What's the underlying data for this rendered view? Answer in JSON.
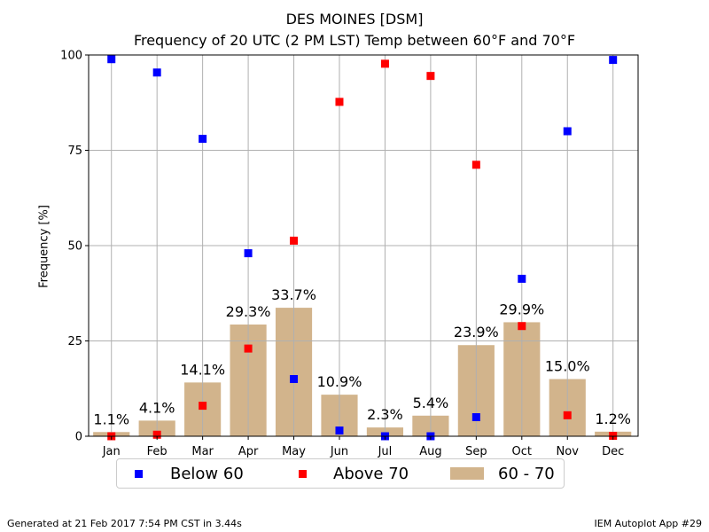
{
  "title": "DES MOINES [DSM]",
  "subtitle": "Frequency of 20 UTC (2 PM LST) Temp between 60°F and 70°F",
  "footer_left": "Generated at 21 Feb 2017 7:54 PM CST in 3.44s",
  "footer_right": "IEM Autoplot App #29",
  "colors": {
    "bar": "#d2b48c",
    "below": "#0000ff",
    "above": "#ff0000",
    "grid": "#b0b0b0"
  },
  "chart_data": {
    "type": "bar",
    "title": "DES MOINES [DSM]",
    "subtitle": "Frequency of 20 UTC (2 PM LST) Temp between 60°F and 70°F",
    "xlabel": "",
    "ylabel": "Frequency [%]",
    "ylim": [
      0,
      100
    ],
    "yticks": [
      0,
      25,
      50,
      75,
      100
    ],
    "grid": true,
    "legend_position": "bottom",
    "categories": [
      "Jan",
      "Feb",
      "Mar",
      "Apr",
      "May",
      "Jun",
      "Jul",
      "Aug",
      "Sep",
      "Oct",
      "Nov",
      "Dec"
    ],
    "series": [
      {
        "name": "60 - 70",
        "kind": "bar",
        "values": [
          1.1,
          4.1,
          14.1,
          29.3,
          33.7,
          10.9,
          2.3,
          5.4,
          23.9,
          29.9,
          15.0,
          1.2
        ],
        "labels": [
          "1.1%",
          "4.1%",
          "14.1%",
          "29.3%",
          "33.7%",
          "10.9%",
          "2.3%",
          "5.4%",
          "23.9%",
          "29.9%",
          "15.0%",
          "1.2%"
        ]
      },
      {
        "name": "Below 60",
        "kind": "scatter",
        "values": [
          98.9,
          95.4,
          78,
          48,
          15,
          1.5,
          0,
          0,
          5,
          41.3,
          80,
          98.7
        ]
      },
      {
        "name": "Above 70",
        "kind": "scatter",
        "values": [
          0,
          0.4,
          8,
          23,
          51.3,
          87.7,
          97.7,
          94.5,
          71.2,
          28.9,
          5.5,
          0.1
        ]
      }
    ]
  }
}
